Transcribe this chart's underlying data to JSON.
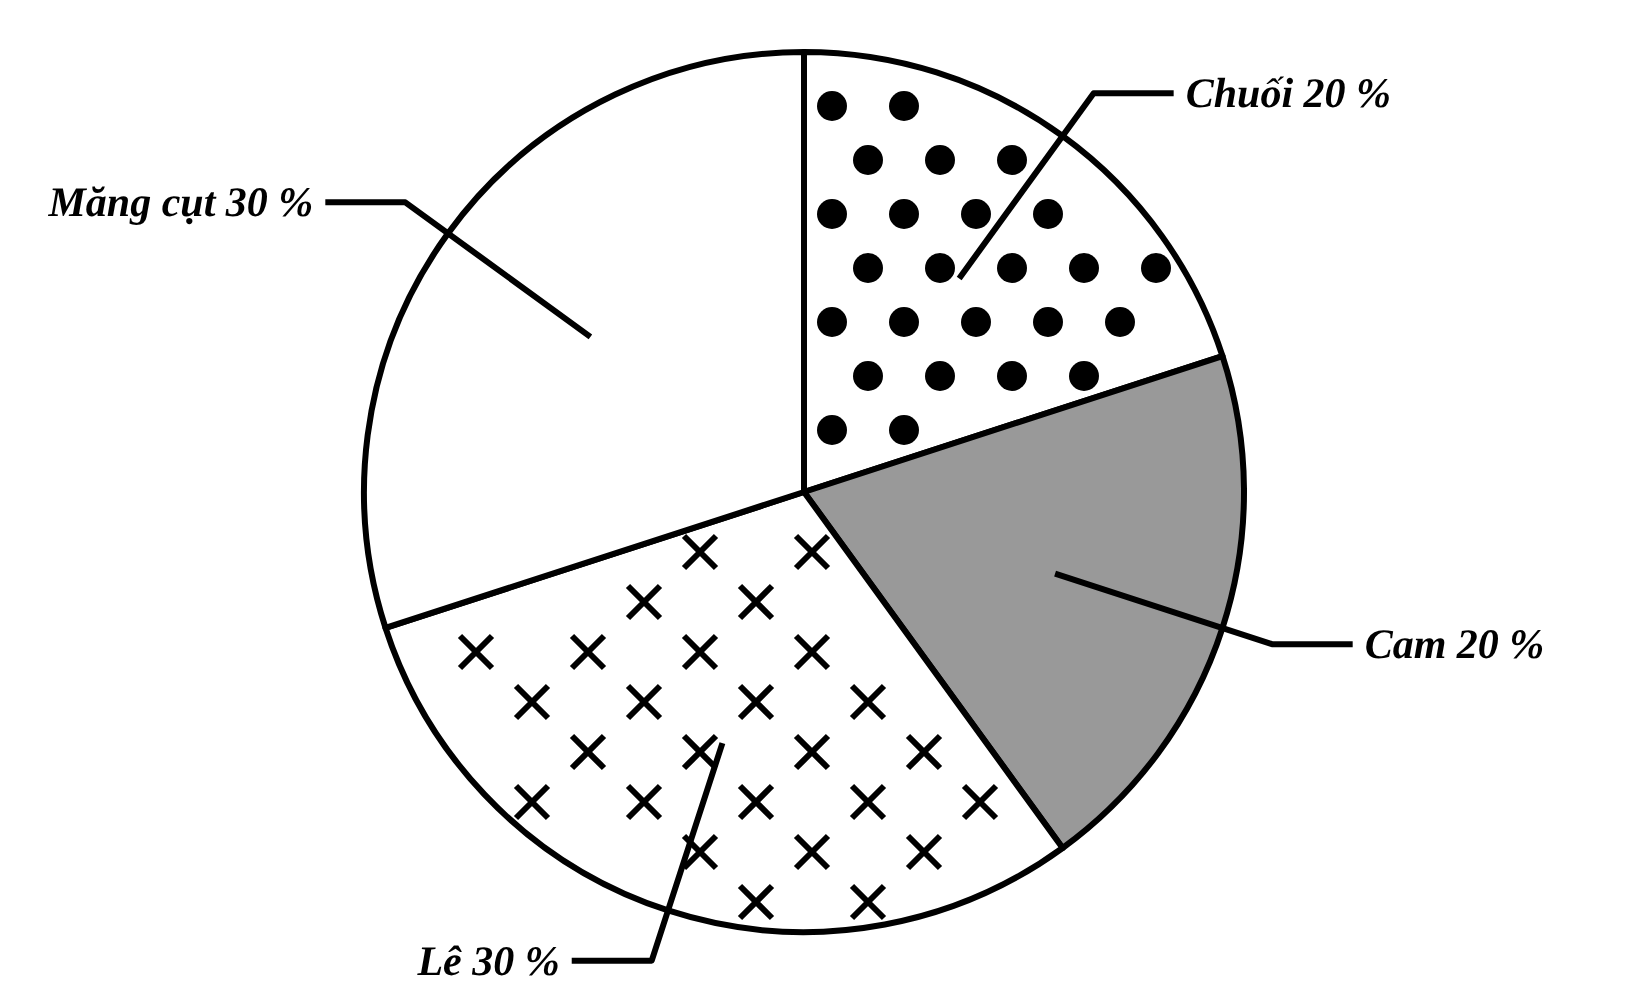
{
  "chart_data": {
    "type": "pie",
    "categories": [
      "Chuối",
      "Cam",
      "Lê",
      "Măng cụt"
    ],
    "values": [
      20,
      20,
      30,
      30
    ],
    "value_labels": [
      "20 %",
      "20 %",
      "30 %",
      "30 %"
    ],
    "colors": [
      "#ffffff",
      "#999999",
      "#ffffff",
      "#ffffff"
    ]
  }
}
